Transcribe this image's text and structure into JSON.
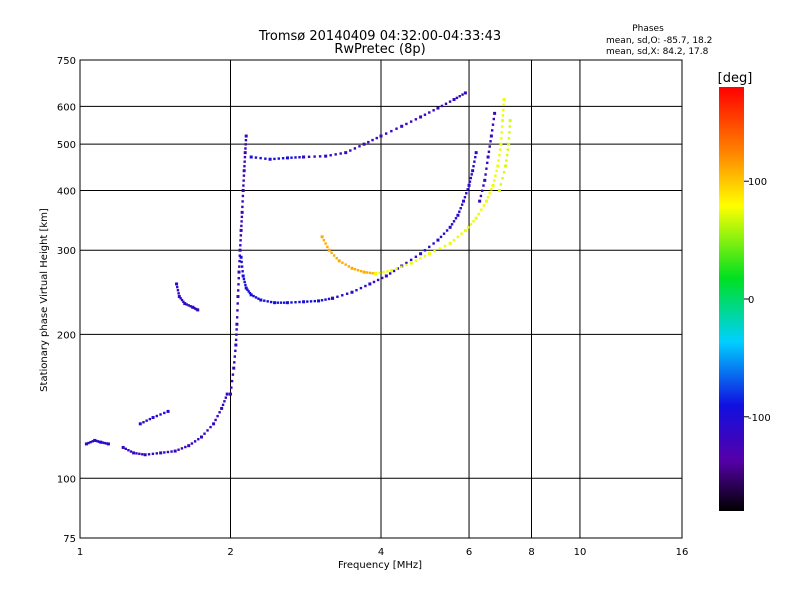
{
  "chart_data": {
    "type": "scatter",
    "title": "Tromsø 20140409 04:32:00-04:33:43",
    "subtitle": "RwPretec (8p)",
    "xlabel": "Frequency [MHz]",
    "ylabel": "Stationary phase Virtual Height [km]",
    "x_scale": "log",
    "y_scale": "log",
    "xlim": [
      1,
      16
    ],
    "ylim": [
      75,
      750
    ],
    "x_ticks": [
      1,
      2,
      4,
      6,
      8,
      10,
      16
    ],
    "y_ticks": [
      75,
      100,
      200,
      300,
      400,
      500,
      600,
      750
    ],
    "grid": true,
    "stats": {
      "heading": "Phases",
      "line1": "mean, sd,O: -85.7, 18.2",
      "line2": "mean, sd,X: 84.2, 17.8"
    },
    "colorbar": {
      "label": "[deg]",
      "min": -180,
      "max": 180,
      "ticks": [
        100,
        0,
        -100
      ]
    },
    "traces": [
      {
        "phase": -110,
        "points": [
          [
            1.03,
            118
          ],
          [
            1.07,
            120
          ],
          [
            1.1,
            119
          ],
          [
            1.14,
            118
          ]
        ]
      },
      {
        "phase": -115,
        "points": [
          [
            1.22,
            116
          ],
          [
            1.28,
            113
          ],
          [
            1.35,
            112
          ],
          [
            1.45,
            113
          ],
          [
            1.55,
            114
          ],
          [
            1.65,
            117
          ],
          [
            1.75,
            122
          ],
          [
            1.85,
            130
          ],
          [
            1.92,
            140
          ],
          [
            1.97,
            150
          ]
        ]
      },
      {
        "phase": -105,
        "points": [
          [
            1.32,
            130
          ],
          [
            1.4,
            134
          ],
          [
            1.5,
            138
          ]
        ]
      },
      {
        "phase": -112,
        "points": [
          [
            1.56,
            255
          ],
          [
            1.58,
            240
          ],
          [
            1.62,
            232
          ],
          [
            1.68,
            228
          ],
          [
            1.72,
            225
          ]
        ]
      },
      {
        "phase": -120,
        "points": [
          [
            2.0,
            150
          ],
          [
            2.03,
            170
          ],
          [
            2.05,
            190
          ],
          [
            2.06,
            210
          ],
          [
            2.07,
            240
          ],
          [
            2.08,
            270
          ],
          [
            2.09,
            300
          ],
          [
            2.1,
            330
          ],
          [
            2.11,
            360
          ],
          [
            2.12,
            400
          ],
          [
            2.13,
            440
          ],
          [
            2.14,
            480
          ],
          [
            2.15,
            520
          ]
        ]
      },
      {
        "phase": -95,
        "points": [
          [
            2.1,
            290
          ],
          [
            2.12,
            265
          ],
          [
            2.15,
            250
          ],
          [
            2.2,
            242
          ],
          [
            2.3,
            236
          ],
          [
            2.45,
            233
          ],
          [
            2.6,
            233
          ],
          [
            2.8,
            234
          ],
          [
            3.0,
            235
          ],
          [
            3.2,
            238
          ]
        ]
      },
      {
        "phase": -110,
        "points": [
          [
            3.2,
            238
          ],
          [
            3.5,
            245
          ],
          [
            3.8,
            255
          ],
          [
            4.1,
            265
          ],
          [
            4.4,
            278
          ],
          [
            4.8,
            295
          ],
          [
            5.2,
            315
          ],
          [
            5.5,
            335
          ],
          [
            5.7,
            355
          ],
          [
            5.85,
            380
          ],
          [
            6.0,
            410
          ],
          [
            6.1,
            440
          ],
          [
            6.2,
            480
          ]
        ]
      },
      {
        "phase": -95,
        "points": [
          [
            2.2,
            470
          ],
          [
            2.4,
            465
          ],
          [
            2.6,
            468
          ],
          [
            2.8,
            470
          ]
        ]
      },
      {
        "phase": -115,
        "points": [
          [
            2.8,
            470
          ],
          [
            3.1,
            472
          ],
          [
            3.4,
            480
          ],
          [
            3.7,
            500
          ],
          [
            4.0,
            520
          ],
          [
            4.4,
            545
          ],
          [
            4.8,
            570
          ],
          [
            5.2,
            595
          ],
          [
            5.6,
            620
          ],
          [
            5.9,
            640
          ]
        ]
      },
      {
        "phase": 110,
        "points": [
          [
            3.05,
            320
          ],
          [
            3.15,
            300
          ],
          [
            3.3,
            285
          ],
          [
            3.5,
            275
          ],
          [
            3.7,
            270
          ],
          [
            3.9,
            268
          ]
        ]
      },
      {
        "phase": 75,
        "points": [
          [
            3.9,
            268
          ],
          [
            4.2,
            272
          ],
          [
            4.6,
            282
          ],
          [
            5.0,
            295
          ],
          [
            5.5,
            310
          ],
          [
            5.9,
            330
          ],
          [
            6.2,
            350
          ],
          [
            6.5,
            380
          ],
          [
            6.7,
            410
          ],
          [
            6.85,
            450
          ],
          [
            6.95,
            500
          ],
          [
            7.0,
            560
          ],
          [
            7.05,
            620
          ]
        ]
      },
      {
        "phase": 70,
        "points": [
          [
            6.9,
            400
          ],
          [
            7.1,
            450
          ],
          [
            7.2,
            500
          ],
          [
            7.25,
            560
          ]
        ]
      },
      {
        "phase": -120,
        "points": [
          [
            6.3,
            380
          ],
          [
            6.45,
            420
          ],
          [
            6.55,
            470
          ],
          [
            6.65,
            520
          ],
          [
            6.75,
            580
          ]
        ]
      }
    ]
  }
}
